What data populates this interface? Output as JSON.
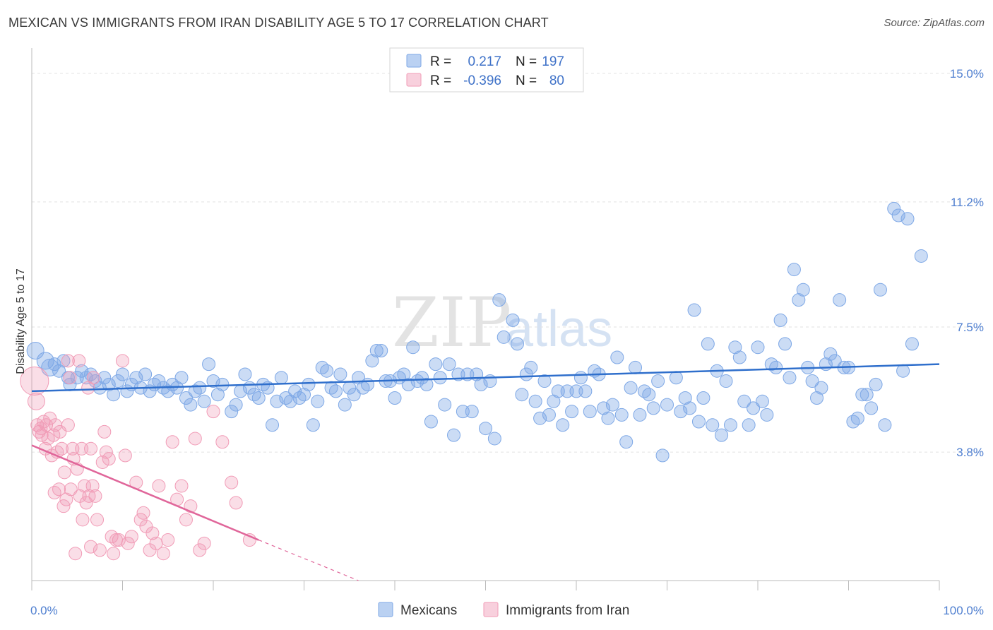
{
  "header": {
    "title": "MEXICAN VS IMMIGRANTS FROM IRAN DISABILITY AGE 5 TO 17 CORRELATION CHART",
    "source": "Source: ZipAtlas.com"
  },
  "watermark": {
    "zip": "ZIP",
    "atlas": "atlas"
  },
  "legend": {
    "r_label": "R =",
    "n_label": "N =",
    "rows": [
      {
        "r": "0.217",
        "n": "197",
        "color": "#7ea8e6"
      },
      {
        "r": "-0.396",
        "n": "80",
        "color": "#f19bb6"
      }
    ]
  },
  "bottom_legend": [
    "Mexicans",
    "Immigrants from Iran"
  ],
  "chart_data": {
    "type": "scatter",
    "title": "MEXICAN VS IMMIGRANTS FROM IRAN DISABILITY AGE 5 TO 17 CORRELATION CHART",
    "ylabel": "Disability Age 5 to 17",
    "xlabel": "",
    "x_tick_labels": [
      "0.0%",
      "100.0%"
    ],
    "y_tick_labels": [
      "15.0%",
      "11.2%",
      "7.5%",
      "3.8%"
    ],
    "y_tick_values": [
      15.0,
      11.2,
      7.5,
      3.8
    ],
    "xlim": [
      0,
      100
    ],
    "ylim": [
      0,
      15.5
    ],
    "grid": true,
    "legend_position": "top-center",
    "colors": {
      "mexicans": "#7ea8e6",
      "iran": "#f19bb6",
      "mexicans_line": "#2f6fcc",
      "iran_line": "#e0669a"
    },
    "series": [
      {
        "name": "Mexicans",
        "trend": {
          "x": [
            0,
            100
          ],
          "y": [
            5.6,
            6.4
          ]
        },
        "points": [
          [
            0.4,
            6.8
          ],
          [
            1.5,
            6.5
          ],
          [
            2.0,
            6.3
          ],
          [
            2.5,
            6.4
          ],
          [
            3.0,
            6.2
          ],
          [
            3.5,
            6.5
          ],
          [
            4.0,
            6.0
          ],
          [
            4.2,
            5.8
          ],
          [
            5.0,
            6.0
          ],
          [
            5.5,
            6.2
          ],
          [
            6.0,
            6.0
          ],
          [
            6.5,
            6.1
          ],
          [
            7.0,
            5.9
          ],
          [
            7.5,
            5.7
          ],
          [
            8.0,
            6.0
          ],
          [
            8.5,
            5.8
          ],
          [
            9.0,
            5.5
          ],
          [
            9.5,
            5.9
          ],
          [
            10.0,
            6.1
          ],
          [
            10.5,
            5.6
          ],
          [
            11.0,
            5.8
          ],
          [
            11.5,
            6.0
          ],
          [
            12.0,
            5.7
          ],
          [
            12.5,
            6.1
          ],
          [
            13.0,
            5.6
          ],
          [
            13.5,
            5.8
          ],
          [
            14.0,
            5.9
          ],
          [
            14.5,
            5.7
          ],
          [
            15.0,
            5.6
          ],
          [
            15.5,
            5.8
          ],
          [
            16.0,
            5.7
          ],
          [
            16.5,
            6.0
          ],
          [
            17.0,
            5.4
          ],
          [
            17.5,
            5.2
          ],
          [
            18.0,
            5.6
          ],
          [
            18.5,
            5.7
          ],
          [
            19.0,
            5.3
          ],
          [
            19.5,
            6.4
          ],
          [
            20.0,
            5.9
          ],
          [
            20.5,
            5.5
          ],
          [
            21.0,
            5.8
          ],
          [
            22.0,
            5.0
          ],
          [
            22.5,
            5.2
          ],
          [
            23.0,
            5.6
          ],
          [
            23.5,
            6.1
          ],
          [
            24.0,
            5.7
          ],
          [
            24.5,
            5.5
          ],
          [
            25.0,
            5.4
          ],
          [
            25.5,
            5.8
          ],
          [
            26.0,
            5.7
          ],
          [
            26.5,
            4.6
          ],
          [
            27.0,
            5.3
          ],
          [
            27.5,
            6.0
          ],
          [
            28.0,
            5.4
          ],
          [
            28.5,
            5.3
          ],
          [
            29.0,
            5.6
          ],
          [
            29.5,
            5.4
          ],
          [
            30.0,
            5.5
          ],
          [
            30.5,
            5.8
          ],
          [
            31.0,
            4.6
          ],
          [
            31.5,
            5.3
          ],
          [
            32.0,
            6.3
          ],
          [
            32.5,
            6.2
          ],
          [
            33.0,
            5.7
          ],
          [
            33.5,
            5.6
          ],
          [
            34.0,
            6.1
          ],
          [
            34.5,
            5.2
          ],
          [
            35.0,
            5.7
          ],
          [
            35.5,
            5.5
          ],
          [
            36.0,
            6.0
          ],
          [
            36.5,
            5.7
          ],
          [
            37.0,
            5.8
          ],
          [
            37.5,
            6.5
          ],
          [
            38.0,
            6.8
          ],
          [
            38.5,
            6.8
          ],
          [
            39.0,
            5.9
          ],
          [
            39.5,
            5.9
          ],
          [
            40.0,
            5.4
          ],
          [
            40.5,
            6.0
          ],
          [
            41.0,
            6.1
          ],
          [
            41.5,
            5.8
          ],
          [
            42.0,
            6.9
          ],
          [
            42.5,
            5.9
          ],
          [
            43.0,
            6.0
          ],
          [
            43.5,
            5.8
          ],
          [
            44.0,
            4.7
          ],
          [
            44.5,
            6.4
          ],
          [
            45.0,
            6.0
          ],
          [
            45.5,
            5.2
          ],
          [
            46.0,
            6.4
          ],
          [
            46.5,
            4.3
          ],
          [
            47.0,
            6.1
          ],
          [
            47.5,
            5.0
          ],
          [
            48.0,
            6.1
          ],
          [
            48.5,
            5.0
          ],
          [
            49.0,
            6.1
          ],
          [
            49.5,
            5.8
          ],
          [
            50.0,
            4.5
          ],
          [
            50.5,
            5.9
          ],
          [
            51.0,
            4.2
          ],
          [
            51.5,
            8.3
          ],
          [
            52.0,
            7.2
          ],
          [
            53.0,
            7.7
          ],
          [
            53.5,
            7.0
          ],
          [
            54.0,
            5.5
          ],
          [
            54.5,
            6.1
          ],
          [
            55.0,
            6.3
          ],
          [
            55.5,
            5.3
          ],
          [
            56.0,
            4.8
          ],
          [
            56.5,
            5.9
          ],
          [
            57.0,
            4.9
          ],
          [
            57.5,
            5.3
          ],
          [
            58.0,
            5.6
          ],
          [
            58.5,
            4.6
          ],
          [
            59.0,
            5.6
          ],
          [
            59.5,
            5.0
          ],
          [
            60.0,
            5.6
          ],
          [
            60.5,
            6.0
          ],
          [
            61.0,
            5.6
          ],
          [
            61.5,
            5.0
          ],
          [
            62.0,
            6.2
          ],
          [
            62.5,
            6.1
          ],
          [
            63.0,
            5.1
          ],
          [
            63.5,
            4.8
          ],
          [
            64.0,
            5.2
          ],
          [
            64.5,
            6.6
          ],
          [
            65.0,
            4.9
          ],
          [
            65.5,
            4.1
          ],
          [
            66.0,
            5.7
          ],
          [
            66.5,
            6.3
          ],
          [
            67.0,
            4.9
          ],
          [
            67.5,
            5.6
          ],
          [
            68.0,
            5.5
          ],
          [
            68.5,
            5.1
          ],
          [
            69.0,
            5.9
          ],
          [
            69.5,
            3.7
          ],
          [
            70.0,
            5.2
          ],
          [
            71.0,
            6.0
          ],
          [
            71.5,
            5.0
          ],
          [
            72.0,
            5.4
          ],
          [
            72.5,
            5.1
          ],
          [
            73.0,
            8.0
          ],
          [
            73.5,
            4.7
          ],
          [
            74.0,
            5.4
          ],
          [
            74.5,
            7.0
          ],
          [
            75.0,
            4.6
          ],
          [
            75.5,
            6.2
          ],
          [
            76.0,
            4.3
          ],
          [
            76.5,
            5.9
          ],
          [
            77.0,
            4.6
          ],
          [
            77.5,
            6.9
          ],
          [
            78.0,
            6.6
          ],
          [
            78.5,
            5.3
          ],
          [
            79.0,
            4.6
          ],
          [
            79.5,
            5.1
          ],
          [
            80.0,
            6.9
          ],
          [
            80.5,
            5.3
          ],
          [
            81.0,
            4.9
          ],
          [
            81.5,
            6.4
          ],
          [
            82.0,
            6.3
          ],
          [
            82.5,
            7.7
          ],
          [
            83.0,
            7.0
          ],
          [
            83.5,
            6.0
          ],
          [
            84.0,
            9.2
          ],
          [
            84.5,
            8.3
          ],
          [
            85.0,
            8.6
          ],
          [
            85.5,
            6.3
          ],
          [
            86.0,
            5.9
          ],
          [
            86.5,
            5.4
          ],
          [
            87.0,
            5.7
          ],
          [
            87.5,
            6.4
          ],
          [
            88.0,
            6.7
          ],
          [
            88.5,
            6.5
          ],
          [
            89.0,
            8.3
          ],
          [
            89.5,
            6.3
          ],
          [
            90.0,
            6.3
          ],
          [
            90.5,
            4.7
          ],
          [
            91.0,
            4.8
          ],
          [
            91.5,
            5.5
          ],
          [
            92.0,
            5.5
          ],
          [
            92.5,
            5.1
          ],
          [
            93.0,
            5.8
          ],
          [
            93.5,
            8.6
          ],
          [
            94.0,
            4.6
          ],
          [
            95.0,
            11.0
          ],
          [
            95.5,
            10.8
          ],
          [
            96.5,
            10.7
          ],
          [
            97.0,
            7.0
          ],
          [
            98.0,
            9.6
          ],
          [
            96.0,
            6.2
          ]
        ]
      },
      {
        "name": "Immigrants from Iran",
        "trend": {
          "x": [
            0,
            25
          ],
          "y": [
            4.0,
            1.2
          ],
          "dashed_x": [
            25,
            36
          ],
          "dashed_y": [
            1.2,
            0.0
          ]
        },
        "points": [
          [
            0.3,
            5.9
          ],
          [
            0.5,
            5.3
          ],
          [
            0.6,
            4.6
          ],
          [
            0.8,
            4.4
          ],
          [
            1.0,
            4.5
          ],
          [
            1.1,
            4.3
          ],
          [
            1.3,
            4.7
          ],
          [
            1.5,
            3.9
          ],
          [
            1.6,
            4.6
          ],
          [
            1.8,
            4.2
          ],
          [
            2.0,
            4.8
          ],
          [
            2.2,
            3.7
          ],
          [
            2.4,
            4.3
          ],
          [
            2.5,
            2.6
          ],
          [
            2.6,
            4.6
          ],
          [
            2.8,
            3.8
          ],
          [
            3.0,
            2.7
          ],
          [
            3.1,
            4.4
          ],
          [
            3.3,
            3.9
          ],
          [
            3.5,
            2.2
          ],
          [
            3.6,
            3.2
          ],
          [
            3.8,
            2.4
          ],
          [
            4.0,
            4.6
          ],
          [
            4.2,
            6.0
          ],
          [
            4.3,
            2.7
          ],
          [
            4.5,
            3.9
          ],
          [
            4.6,
            3.6
          ],
          [
            4.8,
            0.8
          ],
          [
            5.0,
            3.3
          ],
          [
            5.2,
            6.5
          ],
          [
            5.3,
            2.5
          ],
          [
            5.5,
            3.9
          ],
          [
            5.6,
            1.8
          ],
          [
            5.8,
            2.8
          ],
          [
            6.0,
            2.3
          ],
          [
            6.2,
            5.7
          ],
          [
            6.3,
            2.5
          ],
          [
            6.5,
            1.0
          ],
          [
            6.7,
            2.8
          ],
          [
            6.8,
            6.0
          ],
          [
            7.0,
            2.5
          ],
          [
            7.2,
            1.8
          ],
          [
            7.5,
            0.9
          ],
          [
            7.8,
            3.5
          ],
          [
            8.0,
            4.4
          ],
          [
            8.2,
            3.8
          ],
          [
            8.5,
            3.6
          ],
          [
            8.8,
            1.3
          ],
          [
            9.0,
            0.8
          ],
          [
            9.3,
            1.2
          ],
          [
            9.6,
            1.2
          ],
          [
            10.0,
            6.5
          ],
          [
            10.3,
            3.7
          ],
          [
            10.6,
            1.1
          ],
          [
            11.0,
            1.3
          ],
          [
            11.5,
            2.9
          ],
          [
            12.0,
            1.8
          ],
          [
            12.3,
            2.0
          ],
          [
            12.6,
            1.6
          ],
          [
            13.0,
            0.9
          ],
          [
            13.3,
            1.4
          ],
          [
            13.7,
            1.1
          ],
          [
            14.0,
            2.8
          ],
          [
            14.5,
            0.8
          ],
          [
            15.0,
            1.2
          ],
          [
            15.5,
            4.1
          ],
          [
            16.0,
            2.4
          ],
          [
            16.5,
            2.8
          ],
          [
            17.0,
            1.8
          ],
          [
            17.5,
            2.2
          ],
          [
            18.0,
            4.2
          ],
          [
            18.5,
            0.9
          ],
          [
            19.0,
            1.1
          ],
          [
            20.0,
            5.0
          ],
          [
            21.0,
            4.1
          ],
          [
            22.0,
            2.9
          ],
          [
            22.5,
            2.3
          ],
          [
            24.0,
            1.2
          ],
          [
            6.5,
            3.9
          ],
          [
            4.0,
            6.5
          ]
        ]
      }
    ]
  }
}
